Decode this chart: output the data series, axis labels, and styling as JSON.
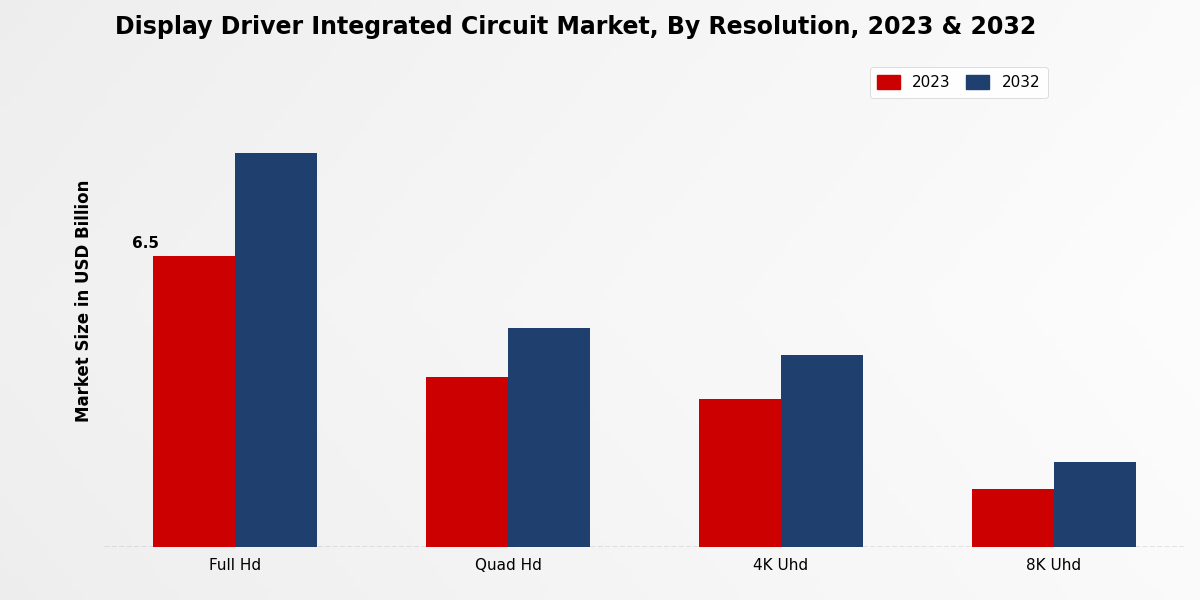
{
  "title": "Display Driver Integrated Circuit Market, By Resolution, 2023 & 2032",
  "ylabel": "Market Size in USD Billion",
  "categories": [
    "Full Hd",
    "Quad Hd",
    "4K Uhd",
    "8K Uhd"
  ],
  "values_2023": [
    6.5,
    3.8,
    3.3,
    1.3
  ],
  "values_2032": [
    8.8,
    4.9,
    4.3,
    1.9
  ],
  "color_2023": "#cc0000",
  "color_2032": "#1f3f6e",
  "bar_width": 0.3,
  "annotation_value": "6.5",
  "ylim": [
    0,
    11
  ],
  "bg_left": "#d8d8d8",
  "bg_right": "#f5f5f5",
  "legend_labels": [
    "2023",
    "2032"
  ],
  "title_fontsize": 17,
  "axis_label_fontsize": 12,
  "tick_fontsize": 11
}
